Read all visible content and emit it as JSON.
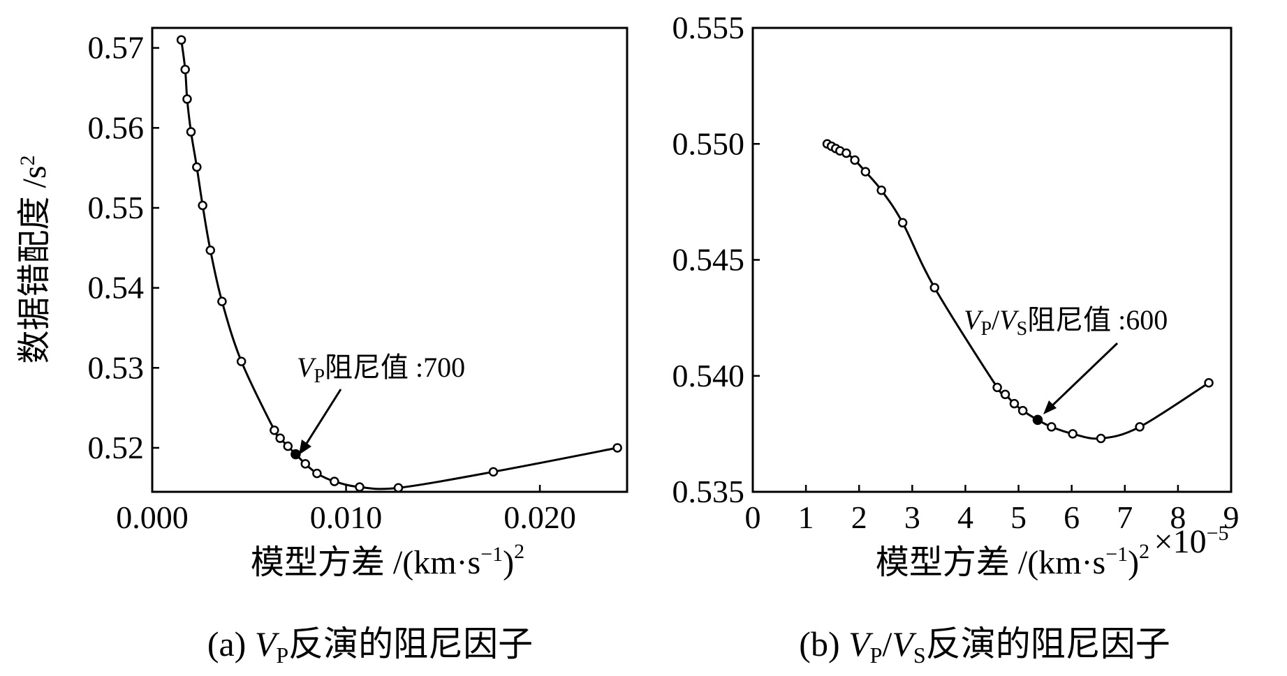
{
  "chart_data": [
    {
      "type": "line",
      "caption": "(a) VP反演的阻尼因子",
      "caption_parts": {
        "prefix": "(a) ",
        "var": "V",
        "sub": "P",
        "suffix": "反演的阻尼因子"
      },
      "ylabel": "数据错配度 /s",
      "ylabel_sup": "2",
      "xlabel": "模型方差 /(km·s",
      "xlabel_sup1": "−1",
      "xlabel_close": ")",
      "xlabel_sup2": "2",
      "xlim": [
        0.0,
        0.0245
      ],
      "ylim": [
        0.5145,
        0.5725
      ],
      "xticks": [
        0.0,
        0.01,
        0.02
      ],
      "xtick_labels": [
        "0.000",
        "0.010",
        "0.020"
      ],
      "yticks": [
        0.52,
        0.53,
        0.54,
        0.55,
        0.56,
        0.57
      ],
      "ytick_labels": [
        "0.52",
        "0.53",
        "0.54",
        "0.55",
        "0.56",
        "0.57"
      ],
      "x": [
        0.0015,
        0.0017,
        0.0018,
        0.002,
        0.0023,
        0.0026,
        0.003,
        0.0036,
        0.0046,
        0.0063,
        0.0066,
        0.007,
        0.0074,
        0.0079,
        0.0085,
        0.0094,
        0.0107,
        0.0127,
        0.0176,
        0.024
      ],
      "y": [
        0.571,
        0.5673,
        0.5636,
        0.5595,
        0.5551,
        0.5503,
        0.5447,
        0.5383,
        0.5308,
        0.5222,
        0.5212,
        0.5202,
        0.5192,
        0.518,
        0.5168,
        0.5158,
        0.5151,
        0.515,
        0.517,
        0.52
      ],
      "selected": {
        "x": 0.0074,
        "y": 0.5192
      },
      "annotation": {
        "var": "V",
        "sub": "P",
        "text": "阻尼值 :700"
      }
    },
    {
      "type": "line",
      "caption": "(b) VP/VS反演的阻尼因子",
      "caption_parts": {
        "prefix": "(b) ",
        "var1": "V",
        "sub1": "P",
        "slash": "/",
        "var2": "V",
        "sub2": "S",
        "suffix": "反演的阻尼因子"
      },
      "xlabel": "模型方差 /(km·s",
      "xlabel_sup1": "−1",
      "xlabel_close": ")",
      "xlabel_sup2": "2",
      "xscale_note": "×10",
      "xscale_exp": "−5",
      "xlim": [
        0,
        9
      ],
      "ylim": [
        0.535,
        0.555
      ],
      "xticks": [
        0,
        1,
        2,
        3,
        4,
        5,
        6,
        7,
        8,
        9
      ],
      "xtick_labels": [
        "0",
        "1",
        "2",
        "3",
        "4",
        "5",
        "6",
        "7",
        "8",
        "9"
      ],
      "yticks": [
        0.535,
        0.54,
        0.545,
        0.55,
        0.555
      ],
      "ytick_labels": [
        "0.535",
        "0.540",
        "0.545",
        "0.550",
        "0.555"
      ],
      "x": [
        1.4,
        1.48,
        1.56,
        1.64,
        1.76,
        1.92,
        2.12,
        2.42,
        2.82,
        3.42,
        4.6,
        4.75,
        4.92,
        5.08,
        5.36,
        5.62,
        6.02,
        6.55,
        7.28,
        8.58
      ],
      "y": [
        0.55,
        0.5499,
        0.5498,
        0.5497,
        0.5496,
        0.5493,
        0.5488,
        0.548,
        0.5466,
        0.5438,
        0.5395,
        0.5392,
        0.5388,
        0.5385,
        0.5381,
        0.5378,
        0.5375,
        0.5373,
        0.5378,
        0.5397
      ],
      "selected": {
        "x": 5.36,
        "y": 0.5381
      },
      "annotation": {
        "var1": "V",
        "sub1": "P",
        "slash": "/",
        "var2": "V",
        "sub2": "S",
        "text": "阻尼值 :600"
      }
    }
  ]
}
